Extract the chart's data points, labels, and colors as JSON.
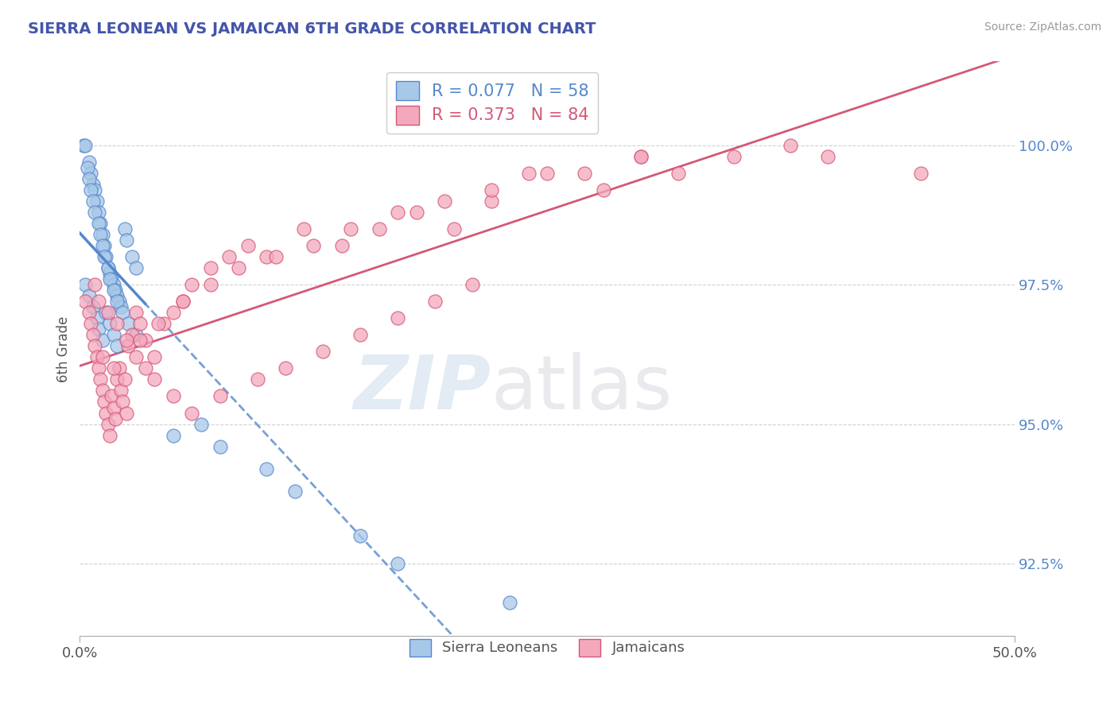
{
  "title": "SIERRA LEONEAN VS JAMAICAN 6TH GRADE CORRELATION CHART",
  "source": "Source: ZipAtlas.com",
  "ylabel": "6th Grade",
  "yticks": [
    92.5,
    95.0,
    97.5,
    100.0
  ],
  "xlim": [
    0.0,
    50.0
  ],
  "ylim": [
    91.2,
    101.5
  ],
  "R_sierra": 0.077,
  "N_sierra": 58,
  "R_jamaican": 0.373,
  "N_jamaican": 84,
  "sierra_color": "#a8c8e8",
  "jamaican_color": "#f4a8bc",
  "sierra_line_color": "#5588cc",
  "jamaican_line_color": "#d45878",
  "background_color": "#ffffff",
  "grid_color": "#cccccc",
  "title_color": "#4455aa",
  "watermark_zip": "ZIP",
  "watermark_atlas": "atlas",
  "sierra_points_x": [
    0.2,
    0.3,
    0.5,
    0.6,
    0.7,
    0.8,
    0.9,
    1.0,
    1.1,
    1.2,
    1.3,
    1.4,
    1.5,
    1.6,
    1.7,
    1.8,
    1.9,
    2.0,
    2.1,
    2.2,
    2.4,
    2.5,
    2.8,
    3.0,
    0.4,
    0.5,
    0.6,
    0.7,
    0.8,
    1.0,
    1.1,
    1.2,
    1.3,
    1.5,
    1.6,
    1.8,
    2.0,
    2.3,
    2.6,
    3.0,
    0.3,
    0.5,
    0.7,
    0.9,
    1.0,
    1.2,
    1.4,
    1.6,
    1.8,
    2.0,
    5.0,
    6.5,
    7.5,
    10.0,
    11.5,
    15.0,
    17.0,
    23.0
  ],
  "sierra_points_y": [
    100.0,
    100.0,
    99.7,
    99.5,
    99.3,
    99.2,
    99.0,
    98.8,
    98.6,
    98.4,
    98.2,
    98.0,
    97.8,
    97.7,
    97.6,
    97.5,
    97.4,
    97.3,
    97.2,
    97.1,
    98.5,
    98.3,
    98.0,
    97.8,
    99.6,
    99.4,
    99.2,
    99.0,
    98.8,
    98.6,
    98.4,
    98.2,
    98.0,
    97.8,
    97.6,
    97.4,
    97.2,
    97.0,
    96.8,
    96.6,
    97.5,
    97.3,
    97.1,
    96.9,
    96.7,
    96.5,
    97.0,
    96.8,
    96.6,
    96.4,
    94.8,
    95.0,
    94.6,
    94.2,
    93.8,
    93.0,
    92.5,
    91.8
  ],
  "jamaican_points_x": [
    0.3,
    0.5,
    0.6,
    0.7,
    0.8,
    0.9,
    1.0,
    1.1,
    1.2,
    1.3,
    1.4,
    1.5,
    1.6,
    1.7,
    1.8,
    1.9,
    2.0,
    2.1,
    2.2,
    2.3,
    2.5,
    2.6,
    2.8,
    3.0,
    3.2,
    3.5,
    4.0,
    4.5,
    5.0,
    5.5,
    6.0,
    7.0,
    8.0,
    9.0,
    10.0,
    12.0,
    14.0,
    16.0,
    18.0,
    20.0,
    22.0,
    25.0,
    28.0,
    30.0,
    0.8,
    1.0,
    1.5,
    2.0,
    2.5,
    3.0,
    3.5,
    4.0,
    5.0,
    6.0,
    7.5,
    9.5,
    11.0,
    13.0,
    15.0,
    17.0,
    19.0,
    21.0,
    1.2,
    1.8,
    2.4,
    3.2,
    4.2,
    5.5,
    7.0,
    8.5,
    10.5,
    12.5,
    14.5,
    17.0,
    19.5,
    22.0,
    24.0,
    27.0,
    30.0,
    32.0,
    35.0,
    38.0,
    40.0,
    45.0
  ],
  "jamaican_points_y": [
    97.2,
    97.0,
    96.8,
    96.6,
    96.4,
    96.2,
    96.0,
    95.8,
    95.6,
    95.4,
    95.2,
    95.0,
    94.8,
    95.5,
    95.3,
    95.1,
    95.8,
    96.0,
    95.6,
    95.4,
    95.2,
    96.4,
    96.6,
    97.0,
    96.8,
    96.5,
    96.2,
    96.8,
    97.0,
    97.2,
    97.5,
    97.8,
    98.0,
    98.2,
    98.0,
    98.5,
    98.2,
    98.5,
    98.8,
    98.5,
    99.0,
    99.5,
    99.2,
    99.8,
    97.5,
    97.2,
    97.0,
    96.8,
    96.5,
    96.2,
    96.0,
    95.8,
    95.5,
    95.2,
    95.5,
    95.8,
    96.0,
    96.3,
    96.6,
    96.9,
    97.2,
    97.5,
    96.2,
    96.0,
    95.8,
    96.5,
    96.8,
    97.2,
    97.5,
    97.8,
    98.0,
    98.2,
    98.5,
    98.8,
    99.0,
    99.2,
    99.5,
    99.5,
    99.8,
    99.5,
    99.8,
    100.0,
    99.8,
    99.5
  ]
}
